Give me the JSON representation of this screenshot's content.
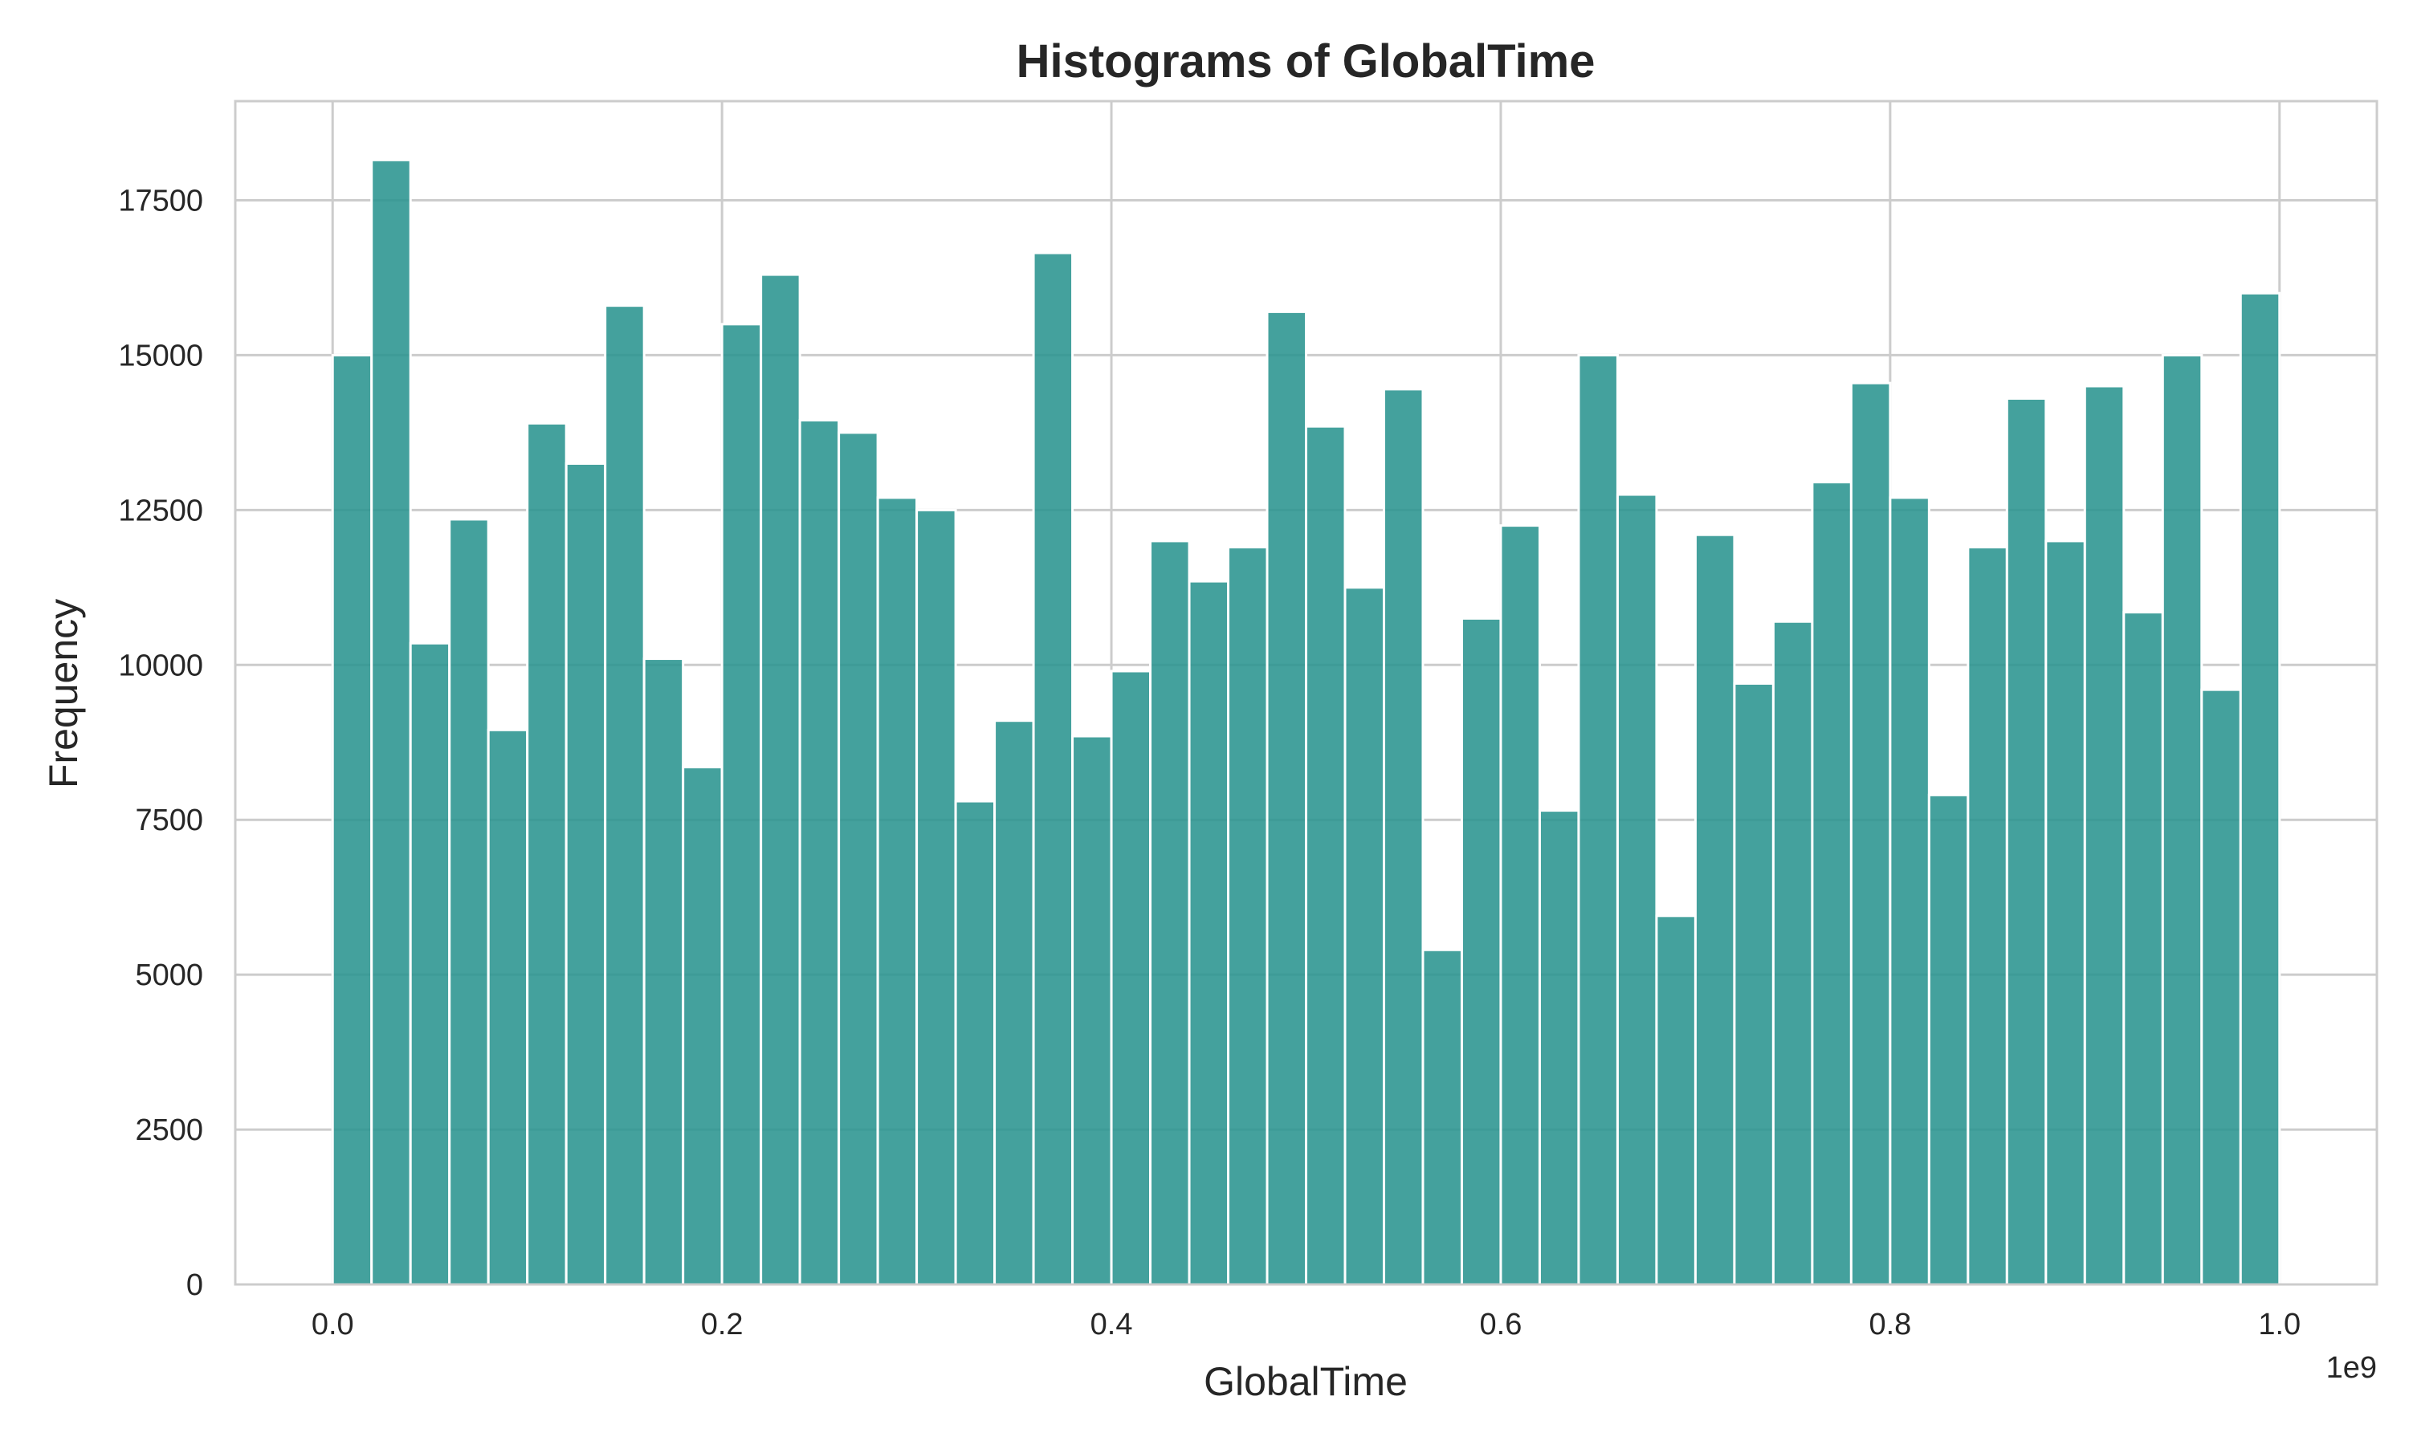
{
  "chart_data": {
    "type": "bar",
    "title": "Histograms of GlobalTime",
    "xlabel": "GlobalTime",
    "ylabel": "Frequency",
    "x_offset_label": "1e9",
    "xlim": [
      -0.05,
      1.05
    ],
    "ylim": [
      0,
      19100
    ],
    "x_ticks": [
      0.0,
      0.2,
      0.4,
      0.6,
      0.8,
      1.0
    ],
    "x_tick_labels": [
      "0.0",
      "0.2",
      "0.4",
      "0.6",
      "0.8",
      "1.0"
    ],
    "y_ticks": [
      0,
      2500,
      5000,
      7500,
      10000,
      12500,
      15000,
      17500
    ],
    "y_tick_labels": [
      "0",
      "2500",
      "5000",
      "7500",
      "10000",
      "12500",
      "15000",
      "17500"
    ],
    "bin_range": [
      0.0,
      1.0
    ],
    "bin_count": 50,
    "values": [
      15000,
      18150,
      10350,
      12350,
      8950,
      13900,
      13250,
      15800,
      10100,
      8350,
      15500,
      16300,
      13950,
      13750,
      12700,
      12500,
      7800,
      9100,
      16650,
      8850,
      9900,
      12000,
      11350,
      11900,
      15700,
      13850,
      11250,
      14450,
      5400,
      10750,
      12250,
      7650,
      15000,
      12750,
      5950,
      12100,
      9700,
      10700,
      12950,
      14550,
      12700,
      7900,
      11900,
      14300,
      12000,
      14500,
      10850,
      15000,
      9600,
      16000
    ],
    "bar_color": "#2a9490",
    "grid": true,
    "legend": "none"
  }
}
